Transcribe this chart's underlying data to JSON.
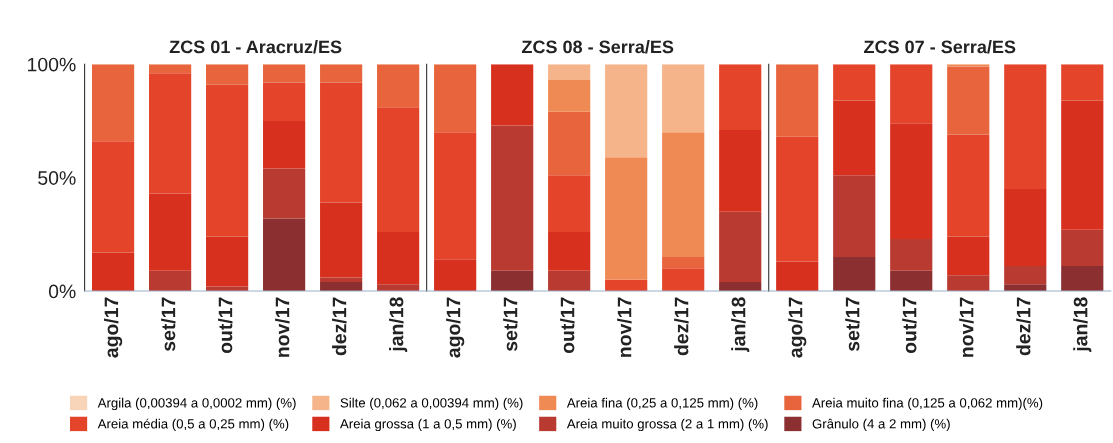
{
  "chart_data": [
    {
      "type": "bar",
      "stacked": true,
      "title": "ZCS 01 - Aracruz/ES",
      "categories": [
        "ago/17",
        "set/17",
        "out/17",
        "nov/17",
        "dez/17",
        "jan/18"
      ],
      "ylim": [
        0,
        100
      ],
      "yticks": [
        {
          "value": 0,
          "label": "0%"
        },
        {
          "value": 50,
          "label": "50%"
        },
        {
          "value": 100,
          "label": "100%"
        }
      ],
      "legend": "bottom",
      "series": [
        {
          "name": "Grânulo (4 a 2 mm) (%)",
          "color": "#8c2f30",
          "values": [
            0,
            0,
            0,
            32,
            4,
            0
          ]
        },
        {
          "name": "Areia muito grossa (2 a 1 mm) (%)",
          "color": "#b83a30",
          "values": [
            0,
            9,
            2,
            22,
            2,
            3
          ]
        },
        {
          "name": "Areia grossa (1 a 0,5 mm) (%)",
          "color": "#d8301f",
          "values": [
            17,
            34,
            22,
            21,
            33,
            23
          ]
        },
        {
          "name": "Areia média (0,5 a 0,25 mm) (%)",
          "color": "#e4442a",
          "values": [
            49,
            53,
            67,
            17,
            53,
            55
          ]
        },
        {
          "name": "Areia muito fina (0,125 a 0,062 mm)(%)",
          "color": "#e8643c",
          "values": [
            34,
            4,
            9,
            8,
            8,
            19
          ]
        },
        {
          "name": "Areia fina (0,25 a 0,125 mm) (%)",
          "color": "#f08a55",
          "values": [
            0,
            0,
            0,
            0,
            0,
            0
          ]
        },
        {
          "name": "Silte (0,062 a 0,00394 mm) (%)",
          "color": "#f5b48a",
          "values": [
            0,
            0,
            0,
            0,
            0,
            0
          ]
        },
        {
          "name": "Argila (0,00394 a 0,0002 mm) (%)",
          "color": "#f8d5b8",
          "values": [
            0,
            0,
            0,
            0,
            0,
            0
          ]
        }
      ]
    },
    {
      "type": "bar",
      "stacked": true,
      "title": "ZCS 08 - Serra/ES",
      "categories": [
        "ago/17",
        "set/17",
        "out/17",
        "nov/17",
        "dez/17",
        "jan/18"
      ],
      "ylim": [
        0,
        100
      ],
      "tick_labels": "x",
      "series": [
        {
          "color": "#8c2f30",
          "values": [
            0,
            9,
            0,
            0,
            0,
            4
          ]
        },
        {
          "color": "#b83a30",
          "values": [
            0,
            64,
            9,
            0,
            0,
            31
          ]
        },
        {
          "color": "#d8301f",
          "values": [
            14,
            27,
            17,
            0,
            0,
            36
          ]
        },
        {
          "color": "#e4442a",
          "values": [
            56,
            0,
            25,
            5,
            10,
            29
          ]
        },
        {
          "color": "#e8643c",
          "values": [
            30,
            0,
            28,
            0,
            5,
            0
          ]
        },
        {
          "color": "#f08a55",
          "values": [
            0,
            0,
            14,
            54,
            55,
            0
          ]
        },
        {
          "color": "#f5b48a",
          "values": [
            0,
            0,
            7,
            41,
            30,
            0
          ]
        },
        {
          "color": "#f8d5b8",
          "values": [
            0,
            0,
            0,
            0,
            0,
            0
          ]
        }
      ]
    },
    {
      "type": "bar",
      "stacked": true,
      "title": "ZCS 07 - Serra/ES",
      "categories": [
        "ago/17",
        "set/17",
        "out/17",
        "nov/17",
        "dez/17",
        "jan/18"
      ],
      "ylim": [
        0,
        100
      ],
      "tick_labels": "x",
      "series": [
        {
          "color": "#8c2f30",
          "values": [
            0,
            15,
            9,
            0,
            3,
            11
          ]
        },
        {
          "color": "#b83a30",
          "values": [
            0,
            36,
            14,
            7,
            8,
            16
          ]
        },
        {
          "color": "#d8301f",
          "values": [
            13,
            33,
            51,
            17,
            34,
            57
          ]
        },
        {
          "color": "#e4442a",
          "values": [
            55,
            16,
            26,
            45,
            55,
            16
          ]
        },
        {
          "color": "#e8643c",
          "values": [
            32,
            0,
            0,
            30,
            0,
            0
          ]
        },
        {
          "color": "#f08a55",
          "values": [
            0,
            0,
            0,
            1,
            0,
            0
          ]
        },
        {
          "color": "#f5b48a",
          "values": [
            0,
            0,
            0,
            0,
            0,
            0
          ]
        },
        {
          "color": "#f8d5b8",
          "values": [
            0,
            0,
            0,
            0,
            0,
            0
          ]
        }
      ]
    }
  ]
}
